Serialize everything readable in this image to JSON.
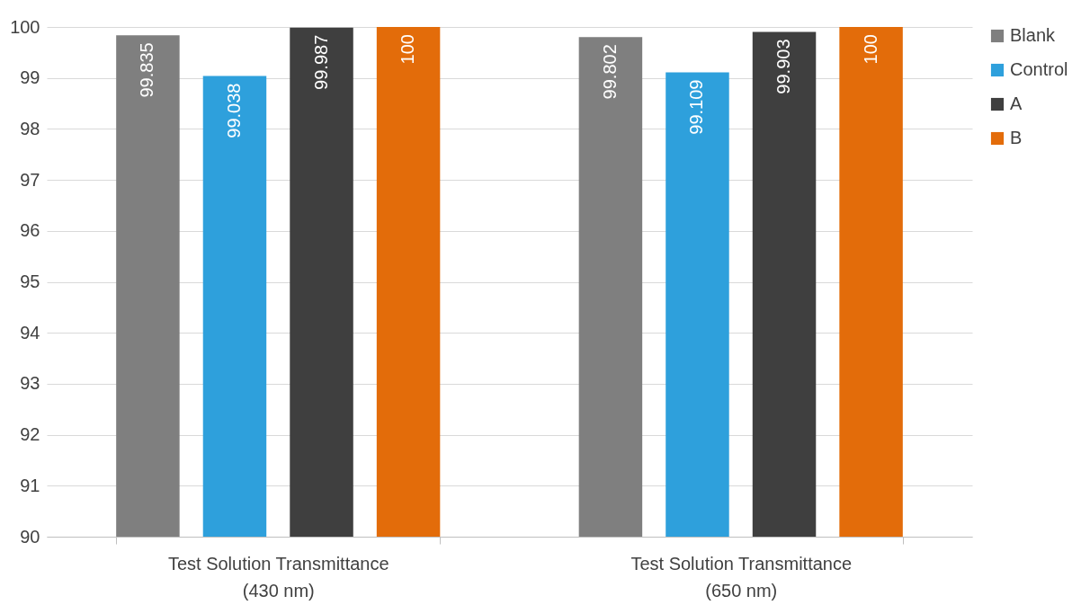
{
  "chart_data": {
    "type": "bar",
    "categories": [
      "Test Solution Transmittance (430 nm)",
      "Test Solution Transmittance (650 nm)"
    ],
    "series": [
      {
        "name": "Blank",
        "color": "#7f7f7f",
        "values": [
          99.835,
          99.802
        ]
      },
      {
        "name": "Control",
        "color": "#2ea0dc",
        "values": [
          99.038,
          99.109
        ]
      },
      {
        "name": "A",
        "color": "#3f3f3f",
        "values": [
          99.987,
          99.903
        ]
      },
      {
        "name": "B",
        "color": "#e36c0a",
        "values": [
          100,
          100
        ]
      }
    ],
    "ylim": [
      90,
      100
    ],
    "yticks": [
      90,
      91,
      92,
      93,
      94,
      95,
      96,
      97,
      98,
      99,
      100
    ],
    "grid": "y",
    "legend": "right",
    "data_labels": true
  }
}
